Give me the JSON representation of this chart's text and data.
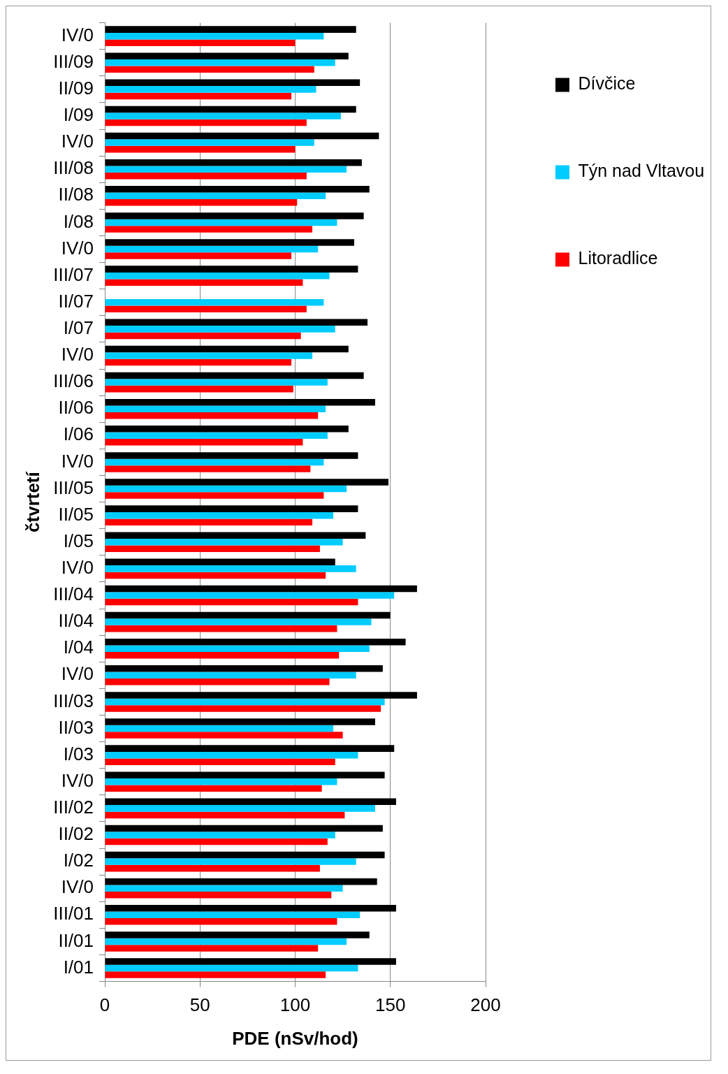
{
  "chart_data": {
    "type": "bar",
    "orientation": "horizontal",
    "xlabel": "PDE (nSv/hod)",
    "ylabel": "čtvrtetí",
    "categories": [
      "IV/0",
      "III/09",
      "II/09",
      "I/09",
      "IV/0",
      "III/08",
      "II/08",
      "I/08",
      "IV/0",
      "III/07",
      "II/07",
      "I/07",
      "IV/0",
      "III/06",
      "II/06",
      "I/06",
      "IV/0",
      "III/05",
      "II/05",
      "I/05",
      "IV/0",
      "III/04",
      "II/04",
      "I/04",
      "IV/0",
      "III/03",
      "II/03",
      "I/03",
      "IV/0",
      "III/02",
      "II/02",
      "I/02",
      "IV/0",
      "III/01",
      "II/01",
      "I/01"
    ],
    "series": [
      {
        "name": "Dívčice",
        "color": "#000000",
        "values": [
          132,
          128,
          134,
          132,
          144,
          135,
          139,
          136,
          131,
          133,
          null,
          138,
          128,
          136,
          142,
          128,
          133,
          149,
          133,
          137,
          121,
          164,
          150,
          158,
          146,
          164,
          142,
          152,
          147,
          153,
          146,
          147,
          143,
          153,
          139,
          153
        ]
      },
      {
        "name": "Týn nad Vltavou",
        "color": "#00ccff",
        "values": [
          115,
          121,
          111,
          124,
          110,
          127,
          116,
          122,
          112,
          118,
          115,
          121,
          109,
          117,
          116,
          117,
          115,
          127,
          120,
          125,
          132,
          152,
          140,
          139,
          132,
          147,
          120,
          133,
          122,
          142,
          121,
          132,
          125,
          134,
          127,
          133
        ]
      },
      {
        "name": "Litoradlice",
        "color": "#ff0000",
        "values": [
          100,
          110,
          98,
          106,
          100,
          106,
          101,
          109,
          98,
          104,
          106,
          103,
          98,
          99,
          112,
          104,
          108,
          115,
          109,
          113,
          116,
          133,
          122,
          123,
          118,
          145,
          125,
          121,
          114,
          126,
          117,
          113,
          119,
          122,
          112,
          116
        ]
      }
    ],
    "xlim": [
      0,
      200
    ],
    "xticks": [
      0,
      50,
      100,
      150,
      200
    ],
    "grid": "x",
    "legend": "right"
  }
}
